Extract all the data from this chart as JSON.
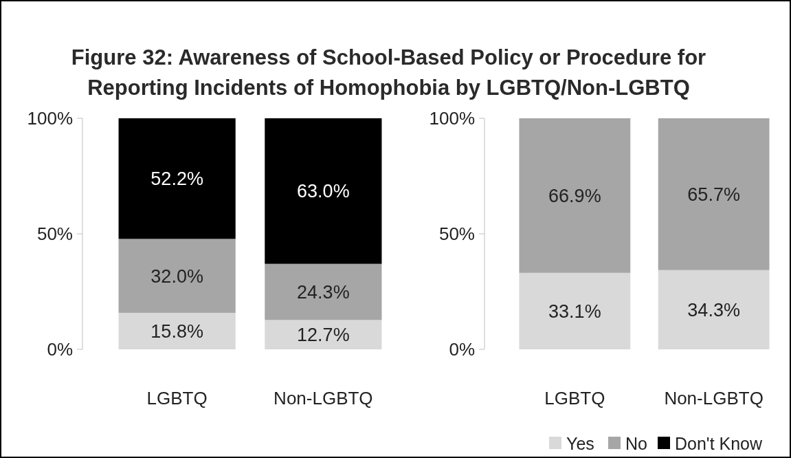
{
  "chart_data": [
    {
      "type": "bar",
      "stacked": true,
      "title": "Figure 32: Awareness of School-Based Policy or Procedure for Reporting Incidents of Homophobia by LGBTQ/Non-LGBTQ",
      "categories": [
        "LGBTQ",
        "Non-LGBTQ"
      ],
      "series": [
        {
          "name": "Yes",
          "color": "#d9d9d9",
          "values": [
            15.8,
            12.7
          ],
          "value_labels": [
            "15.8%",
            "12.7%"
          ]
        },
        {
          "name": "No",
          "color": "#a6a6a6",
          "values": [
            32.0,
            24.3
          ],
          "value_labels": [
            "32.0%",
            "24.3%"
          ]
        },
        {
          "name": "Don't Know",
          "color": "#000000",
          "values": [
            52.2,
            63.0
          ],
          "value_labels": [
            "52.2%",
            "63.0%"
          ]
        }
      ],
      "ylim": [
        0,
        100
      ],
      "yticks": [
        {
          "value": 0,
          "label": "0%"
        },
        {
          "value": 50,
          "label": "50%"
        },
        {
          "value": 100,
          "label": "100%"
        }
      ],
      "legend": "bottom right"
    },
    {
      "type": "bar",
      "stacked": true,
      "categories": [
        "LGBTQ",
        "Non-LGBTQ"
      ],
      "series": [
        {
          "color": "#d9d9d9",
          "values": [
            33.1,
            34.3
          ],
          "value_labels": [
            "33.1%",
            "34.3%"
          ]
        },
        {
          "color": "#a6a6a6",
          "values": [
            66.9,
            65.7
          ],
          "value_labels": [
            "66.9%",
            "65.7%"
          ]
        }
      ],
      "ylim": [
        0,
        100
      ],
      "yticks": [
        {
          "value": 0,
          "label": "0%"
        },
        {
          "value": 50,
          "label": "50%"
        },
        {
          "value": 100,
          "label": "100%"
        }
      ]
    }
  ]
}
